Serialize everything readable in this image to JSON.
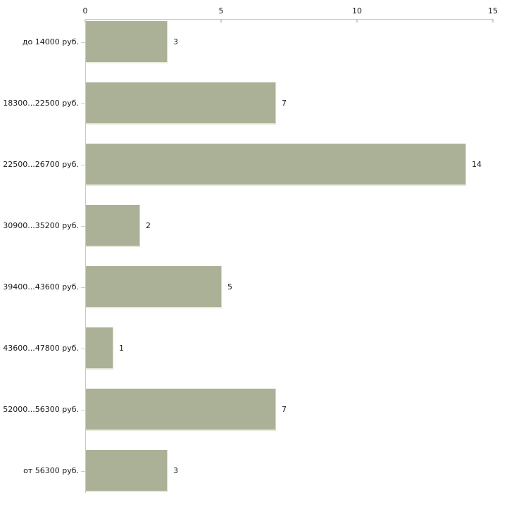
{
  "chart_data": {
    "type": "bar",
    "orientation": "horizontal",
    "title": "",
    "xlabel": "",
    "ylabel": "",
    "categories": [
      "до 14000 руб.",
      "18300...22500 руб.",
      "22500...26700 руб.",
      "30900...35200 руб.",
      "39400...43600 руб.",
      "43600...47800 руб.",
      "52000...56300 руб.",
      "от 56300 руб."
    ],
    "values": [
      3,
      7,
      14,
      2,
      5,
      1,
      7,
      3
    ],
    "value_labels_shown": true,
    "xlim": [
      0,
      15
    ],
    "x_ticks": [
      "0",
      "5",
      "10",
      "15"
    ],
    "x_tick_values": [
      0,
      5,
      10,
      15
    ],
    "grid": false,
    "legend": "none",
    "colors": {
      "bar_fill": "#abb197",
      "bar_edge_bottom": "#e7eada",
      "bar_edge_right": "#d6dac2",
      "axis_line": "#c9c9c5",
      "tick_mark": "#ccd1b6",
      "text": "#1a1a1a",
      "background": "#ffffff"
    }
  }
}
